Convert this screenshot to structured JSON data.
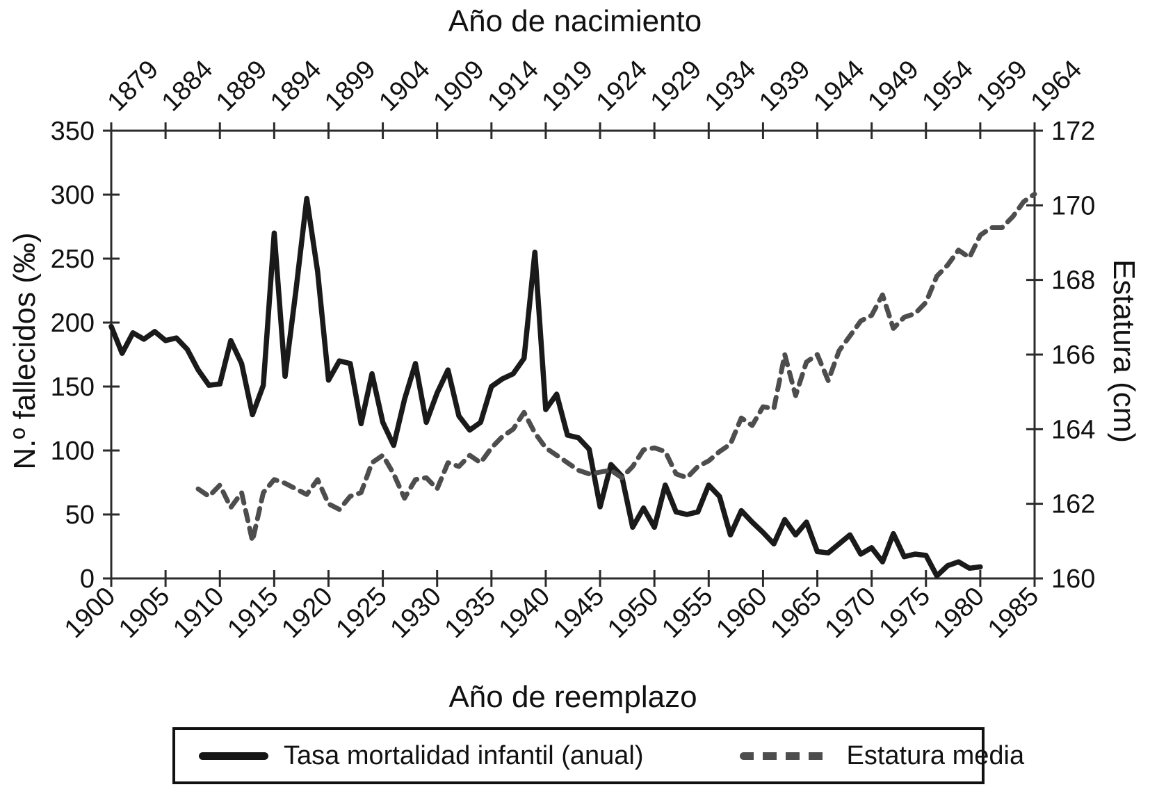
{
  "chart_data": {
    "type": "line",
    "title": "",
    "top_axis": {
      "label": "Año de nacimiento",
      "ticks": [
        1879,
        1884,
        1889,
        1894,
        1899,
        1904,
        1909,
        1914,
        1919,
        1924,
        1929,
        1934,
        1939,
        1944,
        1949,
        1954,
        1959,
        1964
      ]
    },
    "bottom_axis": {
      "label": "Año de reemplazo",
      "min": 1900,
      "max": 1985,
      "ticks": [
        1900,
        1905,
        1910,
        1915,
        1920,
        1925,
        1930,
        1935,
        1940,
        1945,
        1950,
        1955,
        1960,
        1965,
        1970,
        1975,
        1980,
        1985
      ]
    },
    "left_axis": {
      "label": "N.º fallecidos (‰)",
      "min": 0,
      "max": 350,
      "ticks": [
        0,
        50,
        100,
        150,
        200,
        250,
        300,
        350
      ]
    },
    "right_axis": {
      "label": "Estatura (cm)",
      "min": 160,
      "max": 172,
      "ticks": [
        160,
        162,
        164,
        166,
        168,
        170,
        172
      ]
    },
    "grid": false,
    "legend_position": "bottom",
    "series": [
      {
        "name": "Tasa mortalidad infantil (anual)",
        "axis": "left",
        "style": "solid",
        "color": "#1a1a1a",
        "points": [
          [
            1900,
            197
          ],
          [
            1901,
            176
          ],
          [
            1902,
            192
          ],
          [
            1903,
            187
          ],
          [
            1904,
            193
          ],
          [
            1905,
            186
          ],
          [
            1906,
            188
          ],
          [
            1907,
            179
          ],
          [
            1908,
            163
          ],
          [
            1909,
            151
          ],
          [
            1910,
            152
          ],
          [
            1911,
            186
          ],
          [
            1912,
            168
          ],
          [
            1913,
            128
          ],
          [
            1914,
            151
          ],
          [
            1915,
            270
          ],
          [
            1916,
            158
          ],
          [
            1917,
            225
          ],
          [
            1918,
            297
          ],
          [
            1919,
            240
          ],
          [
            1920,
            155
          ],
          [
            1921,
            170
          ],
          [
            1922,
            168
          ],
          [
            1923,
            121
          ],
          [
            1924,
            160
          ],
          [
            1925,
            122
          ],
          [
            1926,
            104
          ],
          [
            1927,
            140
          ],
          [
            1928,
            168
          ],
          [
            1929,
            122
          ],
          [
            1930,
            145
          ],
          [
            1931,
            163
          ],
          [
            1932,
            127
          ],
          [
            1933,
            116
          ],
          [
            1934,
            122
          ],
          [
            1935,
            150
          ],
          [
            1936,
            156
          ],
          [
            1937,
            160
          ],
          [
            1938,
            172
          ],
          [
            1939,
            255
          ],
          [
            1940,
            132
          ],
          [
            1941,
            144
          ],
          [
            1942,
            112
          ],
          [
            1943,
            110
          ],
          [
            1944,
            101
          ],
          [
            1945,
            56
          ],
          [
            1946,
            89
          ],
          [
            1947,
            80
          ],
          [
            1948,
            40
          ],
          [
            1949,
            55
          ],
          [
            1950,
            40
          ],
          [
            1951,
            73
          ],
          [
            1952,
            52
          ],
          [
            1953,
            50
          ],
          [
            1954,
            52
          ],
          [
            1955,
            73
          ],
          [
            1956,
            64
          ],
          [
            1957,
            34
          ],
          [
            1958,
            53
          ],
          [
            1959,
            44
          ],
          [
            1960,
            36
          ],
          [
            1961,
            27
          ],
          [
            1962,
            46
          ],
          [
            1963,
            34
          ],
          [
            1964,
            44
          ],
          [
            1965,
            21
          ],
          [
            1966,
            20
          ],
          [
            1967,
            27
          ],
          [
            1968,
            34
          ],
          [
            1969,
            19
          ],
          [
            1970,
            24
          ],
          [
            1971,
            13
          ],
          [
            1972,
            35
          ],
          [
            1973,
            17
          ],
          [
            1974,
            19
          ],
          [
            1975,
            18
          ],
          [
            1976,
            2
          ],
          [
            1977,
            10
          ],
          [
            1978,
            13
          ],
          [
            1979,
            8
          ],
          [
            1980,
            9
          ]
        ]
      },
      {
        "name": "Estatura media",
        "axis": "right",
        "style": "dashed",
        "color": "#4d4d4d",
        "points": [
          [
            1908,
            162.4
          ],
          [
            1909,
            162.2
          ],
          [
            1910,
            162.5
          ],
          [
            1911,
            161.9
          ],
          [
            1912,
            162.3
          ],
          [
            1913,
            161.0
          ],
          [
            1914,
            162.3
          ],
          [
            1915,
            162.65
          ],
          [
            1916,
            162.55
          ],
          [
            1917,
            162.4
          ],
          [
            1918,
            162.25
          ],
          [
            1919,
            162.65
          ],
          [
            1920,
            162.0
          ],
          [
            1921,
            161.85
          ],
          [
            1922,
            162.2
          ],
          [
            1923,
            162.3
          ],
          [
            1924,
            163.1
          ],
          [
            1925,
            163.3
          ],
          [
            1926,
            162.8
          ],
          [
            1927,
            162.15
          ],
          [
            1928,
            162.65
          ],
          [
            1929,
            162.7
          ],
          [
            1930,
            162.4
          ],
          [
            1931,
            163.1
          ],
          [
            1932,
            163.0
          ],
          [
            1933,
            163.3
          ],
          [
            1934,
            163.1
          ],
          [
            1935,
            163.5
          ],
          [
            1936,
            163.8
          ],
          [
            1937,
            164.0
          ],
          [
            1938,
            164.45
          ],
          [
            1939,
            163.9
          ],
          [
            1940,
            163.5
          ],
          [
            1941,
            163.3
          ],
          [
            1942,
            163.1
          ],
          [
            1943,
            162.9
          ],
          [
            1944,
            162.8
          ],
          [
            1945,
            162.85
          ],
          [
            1946,
            162.9
          ],
          [
            1947,
            162.7
          ],
          [
            1948,
            163.0
          ],
          [
            1949,
            163.45
          ],
          [
            1950,
            163.5
          ],
          [
            1951,
            163.4
          ],
          [
            1952,
            162.8
          ],
          [
            1953,
            162.7
          ],
          [
            1954,
            163.0
          ],
          [
            1955,
            163.15
          ],
          [
            1956,
            163.4
          ],
          [
            1957,
            163.6
          ],
          [
            1958,
            164.3
          ],
          [
            1959,
            164.1
          ],
          [
            1960,
            164.6
          ],
          [
            1961,
            164.55
          ],
          [
            1962,
            166.0
          ],
          [
            1963,
            164.9
          ],
          [
            1964,
            165.8
          ],
          [
            1965,
            166.0
          ],
          [
            1966,
            165.3
          ],
          [
            1967,
            166.1
          ],
          [
            1968,
            166.5
          ],
          [
            1969,
            166.9
          ],
          [
            1970,
            167.05
          ],
          [
            1971,
            167.6
          ],
          [
            1972,
            166.7
          ],
          [
            1973,
            167.0
          ],
          [
            1974,
            167.1
          ],
          [
            1975,
            167.4
          ],
          [
            1976,
            168.1
          ],
          [
            1977,
            168.4
          ],
          [
            1978,
            168.8
          ],
          [
            1979,
            168.6
          ],
          [
            1980,
            169.2
          ],
          [
            1981,
            169.4
          ],
          [
            1982,
            169.4
          ],
          [
            1983,
            169.7
          ],
          [
            1984,
            170.1
          ],
          [
            1985,
            170.3
          ]
        ]
      }
    ]
  },
  "legend": {
    "items": [
      {
        "label": "Tasa mortalidad infantil (anual)",
        "style": "solid"
      },
      {
        "label": "Estatura media",
        "style": "dashed"
      }
    ]
  },
  "colors": {
    "mortality": "#1a1a1a",
    "height": "#4d4d4d",
    "frame": "#2b2b2b",
    "text": "#111111"
  }
}
